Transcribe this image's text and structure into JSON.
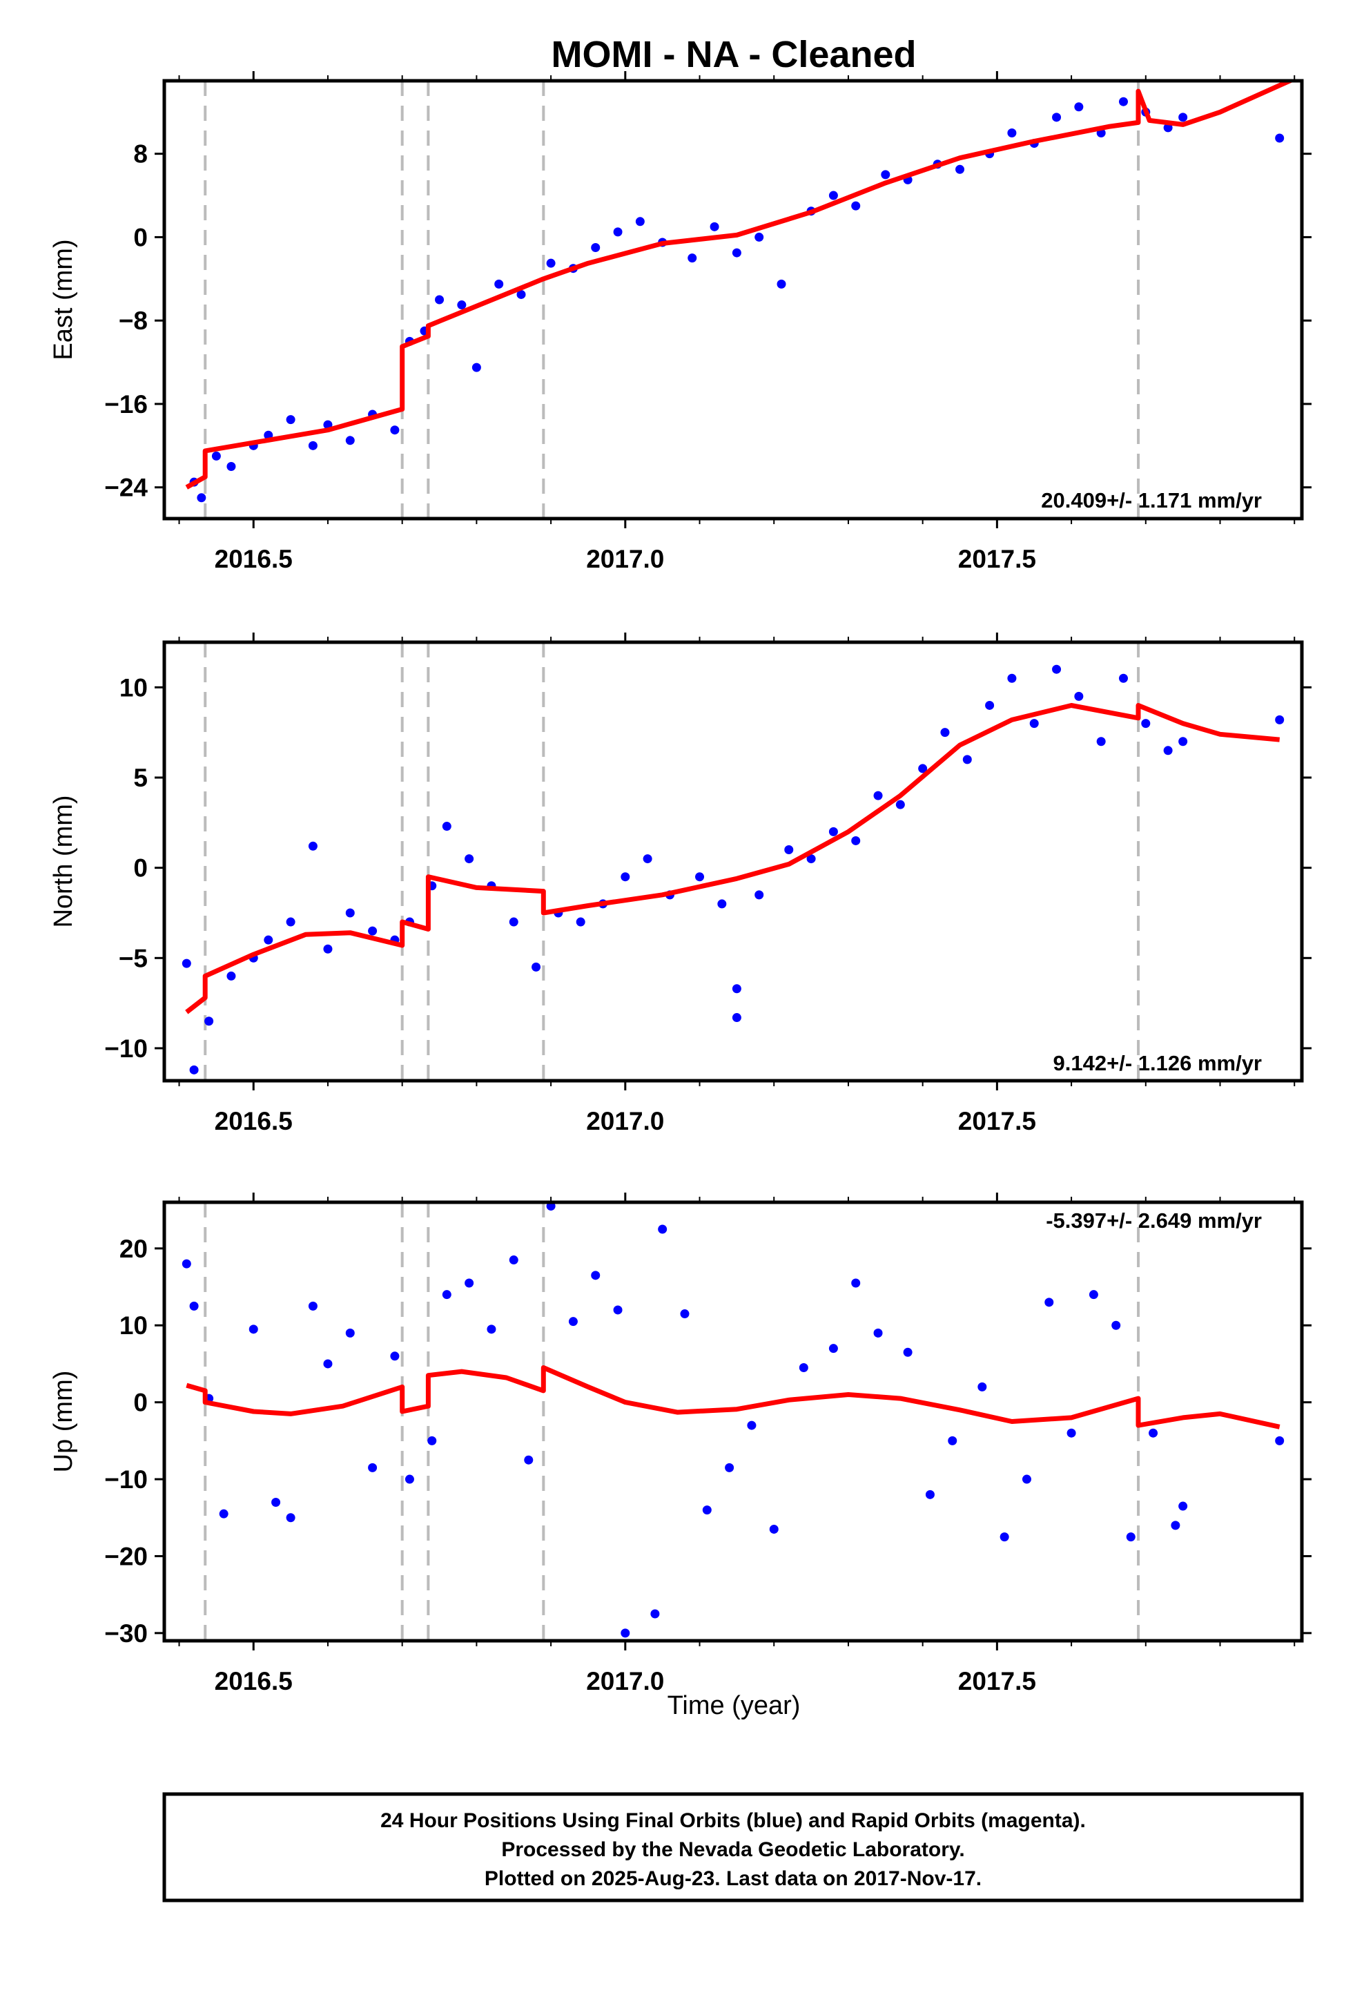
{
  "title": "MOMI  - NA - Cleaned",
  "xlabel": "Time (year)",
  "footer": {
    "line1": "24 Hour Positions Using Final Orbits (blue) and Rapid Orbits (magenta).",
    "line2": "Processed by the Nevada Geodetic Laboratory.",
    "line3": "Plotted on 2025-Aug-23. Last data on 2017-Nov-17."
  },
  "colors": {
    "points": "#0000ff",
    "model": "#ff0000",
    "steps": "#bbbbbb"
  },
  "chart_data": [
    {
      "type": "scatter",
      "ylabel": "East (mm)",
      "rate_label": "20.409+/- 1.171 mm/yr",
      "xlim": [
        2016.38,
        2017.91
      ],
      "ylim": [
        -27,
        15
      ],
      "x_ticks": [
        2016.5,
        2017.0,
        2017.5
      ],
      "x_tick_labels": [
        "2016.5",
        "2017.0",
        "2017.5"
      ],
      "y_ticks": [
        -24,
        -16,
        -8,
        0,
        8
      ],
      "y_tick_labels": [
        "−24",
        "−16",
        "−8",
        "0",
        "8"
      ],
      "step_epochs": [
        2016.435,
        2016.7,
        2016.735,
        2016.89,
        2017.69
      ],
      "model": [
        [
          2016.41,
          -24.0
        ],
        [
          2016.435,
          -23.0
        ],
        [
          2016.435,
          -20.5
        ],
        [
          2016.6,
          -18.5
        ],
        [
          2016.7,
          -16.5
        ],
        [
          2016.7,
          -10.5
        ],
        [
          2016.735,
          -9.5
        ],
        [
          2016.735,
          -8.5
        ],
        [
          2016.89,
          -4.0
        ],
        [
          2016.95,
          -2.5
        ],
        [
          2017.05,
          -0.6
        ],
        [
          2017.15,
          0.2
        ],
        [
          2017.25,
          2.4
        ],
        [
          2017.35,
          5.2
        ],
        [
          2017.45,
          7.6
        ],
        [
          2017.55,
          9.2
        ],
        [
          2017.65,
          10.6
        ],
        [
          2017.69,
          11.0
        ],
        [
          2017.69,
          14.0
        ],
        [
          2017.705,
          11.2
        ],
        [
          2017.75,
          10.8
        ],
        [
          2017.8,
          12.0
        ],
        [
          2017.9,
          15.2
        ]
      ],
      "points": [
        [
          2016.42,
          -23.5
        ],
        [
          2016.43,
          -25.0
        ],
        [
          2016.45,
          -21.0
        ],
        [
          2016.47,
          -22.0
        ],
        [
          2016.5,
          -20.0
        ],
        [
          2016.52,
          -19.0
        ],
        [
          2016.55,
          -17.5
        ],
        [
          2016.58,
          -20.0
        ],
        [
          2016.6,
          -18.0
        ],
        [
          2016.63,
          -19.5
        ],
        [
          2016.66,
          -17.0
        ],
        [
          2016.69,
          -18.5
        ],
        [
          2016.71,
          -10.0
        ],
        [
          2016.73,
          -9.0
        ],
        [
          2016.75,
          -6.0
        ],
        [
          2016.78,
          -6.5
        ],
        [
          2016.8,
          -12.5
        ],
        [
          2016.83,
          -4.5
        ],
        [
          2016.86,
          -5.5
        ],
        [
          2016.9,
          -2.5
        ],
        [
          2016.93,
          -3.0
        ],
        [
          2016.96,
          -1.0
        ],
        [
          2016.99,
          0.5
        ],
        [
          2017.02,
          1.5
        ],
        [
          2017.05,
          -0.5
        ],
        [
          2017.09,
          -2.0
        ],
        [
          2017.12,
          1.0
        ],
        [
          2017.15,
          -1.5
        ],
        [
          2017.18,
          0.0
        ],
        [
          2017.21,
          -4.5
        ],
        [
          2017.25,
          2.5
        ],
        [
          2017.28,
          4.0
        ],
        [
          2017.31,
          3.0
        ],
        [
          2017.35,
          6.0
        ],
        [
          2017.38,
          5.5
        ],
        [
          2017.42,
          7.0
        ],
        [
          2017.45,
          6.5
        ],
        [
          2017.49,
          8.0
        ],
        [
          2017.52,
          10.0
        ],
        [
          2017.55,
          9.0
        ],
        [
          2017.58,
          11.5
        ],
        [
          2017.61,
          12.5
        ],
        [
          2017.64,
          10.0
        ],
        [
          2017.67,
          13.0
        ],
        [
          2017.7,
          12.0
        ],
        [
          2017.73,
          10.5
        ],
        [
          2017.75,
          11.5
        ],
        [
          2017.88,
          9.5
        ]
      ]
    },
    {
      "type": "scatter",
      "ylabel": "North (mm)",
      "rate_label": "9.142+/- 1.126 mm/yr",
      "xlim": [
        2016.38,
        2017.91
      ],
      "ylim": [
        -11.8,
        12.5
      ],
      "x_ticks": [
        2016.5,
        2017.0,
        2017.5
      ],
      "x_tick_labels": [
        "2016.5",
        "2017.0",
        "2017.5"
      ],
      "y_ticks": [
        -10,
        -5,
        0,
        5,
        10
      ],
      "y_tick_labels": [
        "−10",
        "−5",
        "0",
        "5",
        "10"
      ],
      "step_epochs": [
        2016.435,
        2016.7,
        2016.735,
        2016.89,
        2017.69
      ],
      "model": [
        [
          2016.41,
          -8.0
        ],
        [
          2016.435,
          -7.2
        ],
        [
          2016.435,
          -6.0
        ],
        [
          2016.5,
          -4.8
        ],
        [
          2016.57,
          -3.7
        ],
        [
          2016.63,
          -3.6
        ],
        [
          2016.7,
          -4.3
        ],
        [
          2016.7,
          -3.0
        ],
        [
          2016.735,
          -3.4
        ],
        [
          2016.735,
          -0.5
        ],
        [
          2016.8,
          -1.1
        ],
        [
          2016.89,
          -1.3
        ],
        [
          2016.89,
          -2.5
        ],
        [
          2016.95,
          -2.1
        ],
        [
          2017.05,
          -1.5
        ],
        [
          2017.15,
          -0.6
        ],
        [
          2017.22,
          0.2
        ],
        [
          2017.3,
          2.0
        ],
        [
          2017.37,
          4.0
        ],
        [
          2017.45,
          6.8
        ],
        [
          2017.52,
          8.2
        ],
        [
          2017.6,
          9.0
        ],
        [
          2017.69,
          8.3
        ],
        [
          2017.69,
          9.0
        ],
        [
          2017.75,
          8.0
        ],
        [
          2017.8,
          7.4
        ],
        [
          2017.88,
          7.1
        ]
      ],
      "points": [
        [
          2016.41,
          -5.3
        ],
        [
          2016.42,
          -11.2
        ],
        [
          2016.44,
          -8.5
        ],
        [
          2016.47,
          -6.0
        ],
        [
          2016.5,
          -5.0
        ],
        [
          2016.52,
          -4.0
        ],
        [
          2016.55,
          -3.0
        ],
        [
          2016.58,
          1.2
        ],
        [
          2016.6,
          -4.5
        ],
        [
          2016.63,
          -2.5
        ],
        [
          2016.66,
          -3.5
        ],
        [
          2016.69,
          -4.0
        ],
        [
          2016.71,
          -3.0
        ],
        [
          2016.74,
          -1.0
        ],
        [
          2016.76,
          2.3
        ],
        [
          2016.79,
          0.5
        ],
        [
          2016.82,
          -1.0
        ],
        [
          2016.85,
          -3.0
        ],
        [
          2016.88,
          -5.5
        ],
        [
          2016.91,
          -2.5
        ],
        [
          2016.94,
          -3.0
        ],
        [
          2016.97,
          -2.0
        ],
        [
          2017.0,
          -0.5
        ],
        [
          2017.03,
          0.5
        ],
        [
          2017.06,
          -1.5
        ],
        [
          2017.1,
          -0.5
        ],
        [
          2017.13,
          -2.0
        ],
        [
          2017.15,
          -8.3
        ],
        [
          2017.15,
          -6.7
        ],
        [
          2017.18,
          -1.5
        ],
        [
          2017.22,
          1.0
        ],
        [
          2017.25,
          0.5
        ],
        [
          2017.28,
          2.0
        ],
        [
          2017.31,
          1.5
        ],
        [
          2017.34,
          4.0
        ],
        [
          2017.37,
          3.5
        ],
        [
          2017.4,
          5.5
        ],
        [
          2017.43,
          7.5
        ],
        [
          2017.46,
          6.0
        ],
        [
          2017.49,
          9.0
        ],
        [
          2017.52,
          10.5
        ],
        [
          2017.55,
          8.0
        ],
        [
          2017.58,
          11.0
        ],
        [
          2017.61,
          9.5
        ],
        [
          2017.64,
          7.0
        ],
        [
          2017.67,
          10.5
        ],
        [
          2017.7,
          8.0
        ],
        [
          2017.73,
          6.5
        ],
        [
          2017.75,
          7.0
        ],
        [
          2017.88,
          8.2
        ]
      ]
    },
    {
      "type": "scatter",
      "ylabel": "Up (mm)",
      "rate_label": "-5.397+/- 2.649 mm/yr",
      "xlim": [
        2016.38,
        2017.91
      ],
      "ylim": [
        -31,
        26
      ],
      "x_ticks": [
        2016.5,
        2017.0,
        2017.5
      ],
      "x_tick_labels": [
        "2016.5",
        "2017.0",
        "2017.5"
      ],
      "y_ticks": [
        -30,
        -20,
        -10,
        0,
        10,
        20
      ],
      "y_tick_labels": [
        "−30",
        "−20",
        "−10",
        "0",
        "10",
        "20"
      ],
      "step_epochs": [
        2016.435,
        2016.7,
        2016.735,
        2016.89,
        2017.69
      ],
      "model": [
        [
          2016.41,
          2.2
        ],
        [
          2016.435,
          1.5
        ],
        [
          2016.435,
          0.0
        ],
        [
          2016.5,
          -1.2
        ],
        [
          2016.55,
          -1.5
        ],
        [
          2016.62,
          -0.5
        ],
        [
          2016.7,
          2.0
        ],
        [
          2016.7,
          -1.2
        ],
        [
          2016.735,
          -0.5
        ],
        [
          2016.735,
          3.5
        ],
        [
          2016.78,
          4.0
        ],
        [
          2016.84,
          3.2
        ],
        [
          2016.89,
          1.5
        ],
        [
          2016.89,
          4.5
        ],
        [
          2016.95,
          2.0
        ],
        [
          2017.0,
          0.0
        ],
        [
          2017.07,
          -1.3
        ],
        [
          2017.15,
          -0.9
        ],
        [
          2017.22,
          0.3
        ],
        [
          2017.3,
          1.0
        ],
        [
          2017.37,
          0.5
        ],
        [
          2017.45,
          -1.0
        ],
        [
          2017.52,
          -2.5
        ],
        [
          2017.6,
          -2.0
        ],
        [
          2017.69,
          0.5
        ],
        [
          2017.69,
          -3.0
        ],
        [
          2017.75,
          -2.0
        ],
        [
          2017.8,
          -1.5
        ],
        [
          2017.88,
          -3.2
        ]
      ],
      "points": [
        [
          2016.41,
          18.0
        ],
        [
          2016.42,
          12.5
        ],
        [
          2016.44,
          0.5
        ],
        [
          2016.46,
          -14.5
        ],
        [
          2016.5,
          9.5
        ],
        [
          2016.53,
          -13.0
        ],
        [
          2016.55,
          -15.0
        ],
        [
          2016.58,
          12.5
        ],
        [
          2016.6,
          5.0
        ],
        [
          2016.63,
          9.0
        ],
        [
          2016.66,
          -8.5
        ],
        [
          2016.69,
          6.0
        ],
        [
          2016.71,
          -10.0
        ],
        [
          2016.74,
          -5.0
        ],
        [
          2016.76,
          14.0
        ],
        [
          2016.79,
          15.5
        ],
        [
          2016.82,
          9.5
        ],
        [
          2016.85,
          18.5
        ],
        [
          2016.87,
          -7.5
        ],
        [
          2016.9,
          25.5
        ],
        [
          2016.93,
          10.5
        ],
        [
          2016.96,
          16.5
        ],
        [
          2016.99,
          12.0
        ],
        [
          2017.0,
          -30.0
        ],
        [
          2017.04,
          -27.5
        ],
        [
          2017.05,
          22.5
        ],
        [
          2017.08,
          11.5
        ],
        [
          2017.11,
          -14.0
        ],
        [
          2017.14,
          -8.5
        ],
        [
          2017.17,
          -3.0
        ],
        [
          2017.2,
          -16.5
        ],
        [
          2017.24,
          4.5
        ],
        [
          2017.28,
          7.0
        ],
        [
          2017.31,
          15.5
        ],
        [
          2017.34,
          9.0
        ],
        [
          2017.38,
          6.5
        ],
        [
          2017.41,
          -12.0
        ],
        [
          2017.44,
          -5.0
        ],
        [
          2017.48,
          2.0
        ],
        [
          2017.51,
          -17.5
        ],
        [
          2017.54,
          -10.0
        ],
        [
          2017.57,
          13.0
        ],
        [
          2017.6,
          -4.0
        ],
        [
          2017.63,
          14.0
        ],
        [
          2017.66,
          10.0
        ],
        [
          2017.68,
          -17.5
        ],
        [
          2017.71,
          -4.0
        ],
        [
          2017.74,
          -16.0
        ],
        [
          2017.75,
          -13.5
        ],
        [
          2017.88,
          -5.0
        ]
      ]
    }
  ]
}
